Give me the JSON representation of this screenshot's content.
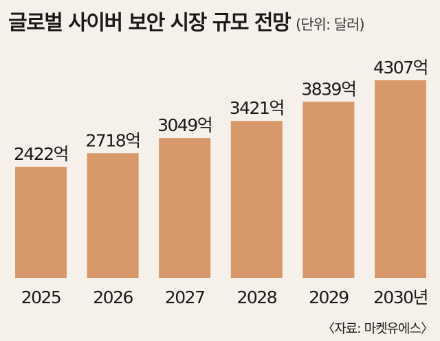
{
  "header": {
    "title": "글로벌 사이버 보안 시장 규모 전망",
    "unit": "(단위: 달러)"
  },
  "source": "〈자료: 마켓유에스〉",
  "colors": {
    "background": "#f6f0ea",
    "bar": "#d8996a",
    "text": "#1a1a1a"
  },
  "chart_data": {
    "type": "bar",
    "categories": [
      "2025",
      "2026",
      "2027",
      "2028",
      "2029",
      "2030년"
    ],
    "values": [
      2422,
      2718,
      3049,
      3421,
      3839,
      4307
    ],
    "data_labels": [
      "2422억",
      "2718억",
      "3049억",
      "3421억",
      "3839억",
      "4307억"
    ],
    "title": "글로벌 사이버 보안 시장 규모 전망",
    "unit": "(단위: 달러)",
    "xlabel": "",
    "ylabel": "",
    "ylim": [
      0,
      4307
    ],
    "grid": false,
    "legend": "none"
  }
}
